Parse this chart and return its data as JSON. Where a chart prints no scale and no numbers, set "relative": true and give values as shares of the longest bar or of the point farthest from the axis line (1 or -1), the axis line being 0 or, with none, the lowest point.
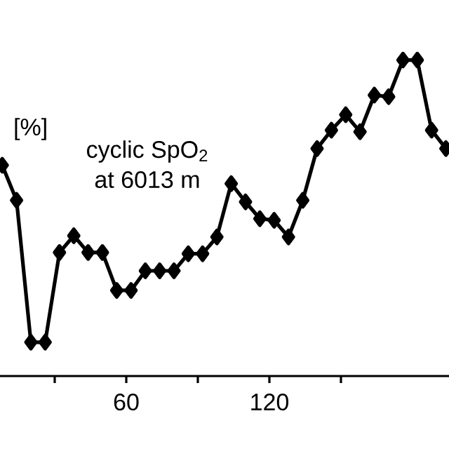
{
  "chart_data": {
    "type": "line",
    "ylabel": "[%]",
    "annotations": [
      "cyclic SpO$_{2}$",
      "at 6013 m"
    ],
    "x": [
      8,
      14,
      20,
      26,
      32,
      38,
      44,
      50,
      56,
      62,
      68,
      74,
      80,
      86,
      92,
      98,
      104,
      110,
      116,
      122,
      128,
      134,
      140,
      146,
      152,
      158,
      164,
      170,
      176,
      182,
      188,
      194
    ],
    "series": [
      {
        "color": "#000000",
        "values": [
          0.667,
          0.556,
          0.107,
          0.107,
          0.391,
          0.444,
          0.391,
          0.391,
          0.271,
          0.271,
          0.333,
          0.333,
          0.333,
          0.387,
          0.387,
          0.44,
          0.609,
          0.551,
          0.498,
          0.493,
          0.44,
          0.556,
          0.72,
          0.778,
          0.827,
          0.773,
          0.889,
          0.884,
          1,
          1,
          0.778,
          0.72
        ]
      }
    ],
    "relative": true,
    "xlim": [
      7.06,
      195.3
    ],
    "xticks": [
      {
        "value": 30,
        "label": null
      },
      60,
      {
        "value": 90,
        "label": null
      },
      120,
      {
        "value": 150,
        "label": null
      }
    ],
    "tick_labels": "x",
    "grid": false,
    "marker": "diamond",
    "line_style": "solid"
  }
}
